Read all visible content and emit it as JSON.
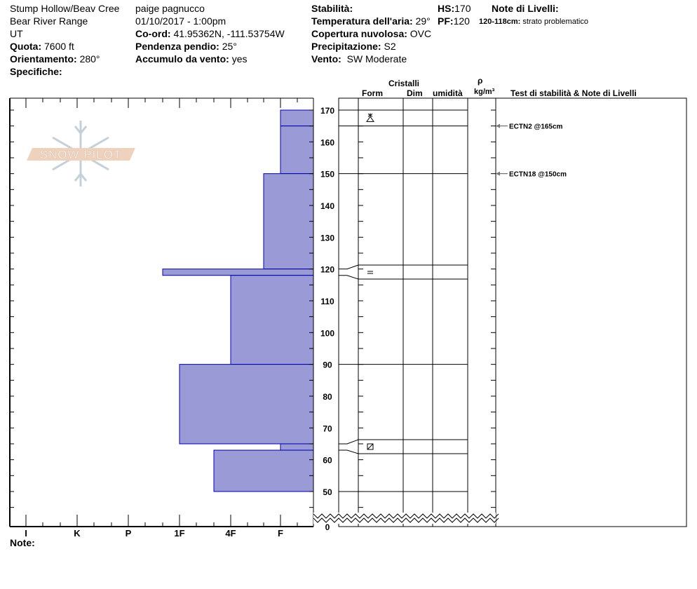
{
  "header": {
    "location": "Stump Hollow/Beav Cree",
    "range": "Bear River Range",
    "state": "UT",
    "elevation_label": "Quota:",
    "elevation": "7600 ft",
    "aspect_label": "Orientamento:",
    "aspect": "280°",
    "specifics_label": "Specifiche:",
    "observer": "paige pagnucco",
    "datetime": "01/10/2017 - 1:00pm",
    "coord_label": "Co-ord:",
    "coord": "41.95362N, -111.53754W",
    "slope_label": "Pendenza pendio:",
    "slope": "25°",
    "wind_loading_label": "Accumulo da vento:",
    "wind_loading": "yes",
    "stability_label": "Stabilità:",
    "stability": "",
    "air_temp_label": "Temperatura dell'aria:",
    "air_temp": "29°",
    "sky_label": "Copertura nuvolosa:",
    "sky": "OVC",
    "precip_label": "Precipitazione:",
    "precip": "S2",
    "wind_label": "Vento:",
    "wind": "SW Moderate",
    "hs_label": "HS:",
    "hs": "170",
    "pf_label": "PF:",
    "pf": "120",
    "layer_notes_label": "Note di Livelli:",
    "layer_note_range": "120-118cm:",
    "layer_note_text": "strato problematico"
  },
  "columns": {
    "crystals": "Cristalli",
    "form": "Form",
    "size": "Dim",
    "moisture": "umidità",
    "density_symbol": "ρ",
    "density_unit": "kg/m³",
    "tests": "Test di stabilità & Note di Livelli"
  },
  "notes_label": "Note:",
  "logo_text": "SNOW PILOT",
  "colors": {
    "layer_fill": "#9a9ad6",
    "layer_stroke": "#0000aa",
    "logo_band": "#efd2bd",
    "logo_flake": "#c5d0d8"
  },
  "chart_data": {
    "type": "bar",
    "orientation": "horizontal",
    "y_axis": {
      "ticks": [
        170,
        160,
        150,
        140,
        130,
        120,
        110,
        100,
        90,
        80,
        70,
        60,
        50,
        0
      ],
      "unit": "cm",
      "broken_below": 50
    },
    "x_axis": {
      "ticks": [
        "I",
        "K",
        "P",
        "1F",
        "4F",
        "F"
      ],
      "reversed": true
    },
    "layers": [
      {
        "top": 170,
        "bottom": 165,
        "hardness": "F",
        "grain": "surface-hoar-icon"
      },
      {
        "top": 165,
        "bottom": 150,
        "hardness": "F",
        "grain": ""
      },
      {
        "top": 150,
        "bottom": 120,
        "hardness": "F+",
        "grain": ""
      },
      {
        "top": 120,
        "bottom": 118,
        "hardness": "1F+",
        "grain": "melt-freeze-crust-icon"
      },
      {
        "top": 118,
        "bottom": 90,
        "hardness": "4F",
        "grain": ""
      },
      {
        "top": 90,
        "bottom": 65,
        "hardness": "1F",
        "grain": ""
      },
      {
        "top": 65,
        "bottom": 63,
        "hardness": "F",
        "grain": "rounding-facets-icon"
      },
      {
        "top": 63,
        "bottom": 50,
        "hardness": "4F+",
        "grain": ""
      }
    ],
    "tests": [
      {
        "depth": 165,
        "label": "ECTN2 @165cm"
      },
      {
        "depth": 150,
        "label": "ECTN18 @150cm"
      }
    ]
  }
}
